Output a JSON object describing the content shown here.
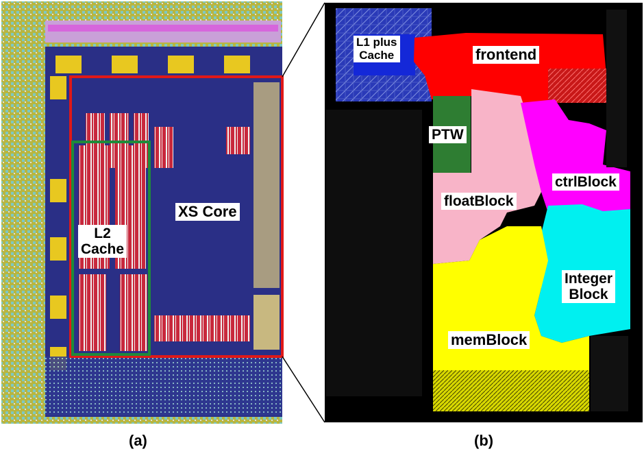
{
  "panels": {
    "a": {
      "caption": "(a)",
      "labels": {
        "core": "XS Core",
        "l2_line1": "L2",
        "l2_line2": "Cache"
      },
      "colors": {
        "die": "#2a2f86",
        "io_ring": "#b8b640",
        "cache": "#c8283c",
        "core_outline": "#e01818",
        "l2_outline": "#1f8a3a"
      }
    },
    "b": {
      "caption": "(b)",
      "labels": {
        "l1_line1": "L1 plus",
        "l1_line2": "Cache",
        "frontend": "frontend",
        "ptw": "PTW",
        "ctrl": "ctrlBlock",
        "float": "floatBlock",
        "int_line1": "Integer",
        "int_line2": "Block",
        "mem": "memBlock"
      },
      "colors": {
        "background": "#000000",
        "l1": "#2a3ab8",
        "frontend": "#ff0000",
        "ptw": "#2e7d32",
        "ctrl": "#ff00ff",
        "float": "#f8b4c8",
        "integer": "#00f0f0",
        "mem": "#ffff00"
      }
    }
  }
}
